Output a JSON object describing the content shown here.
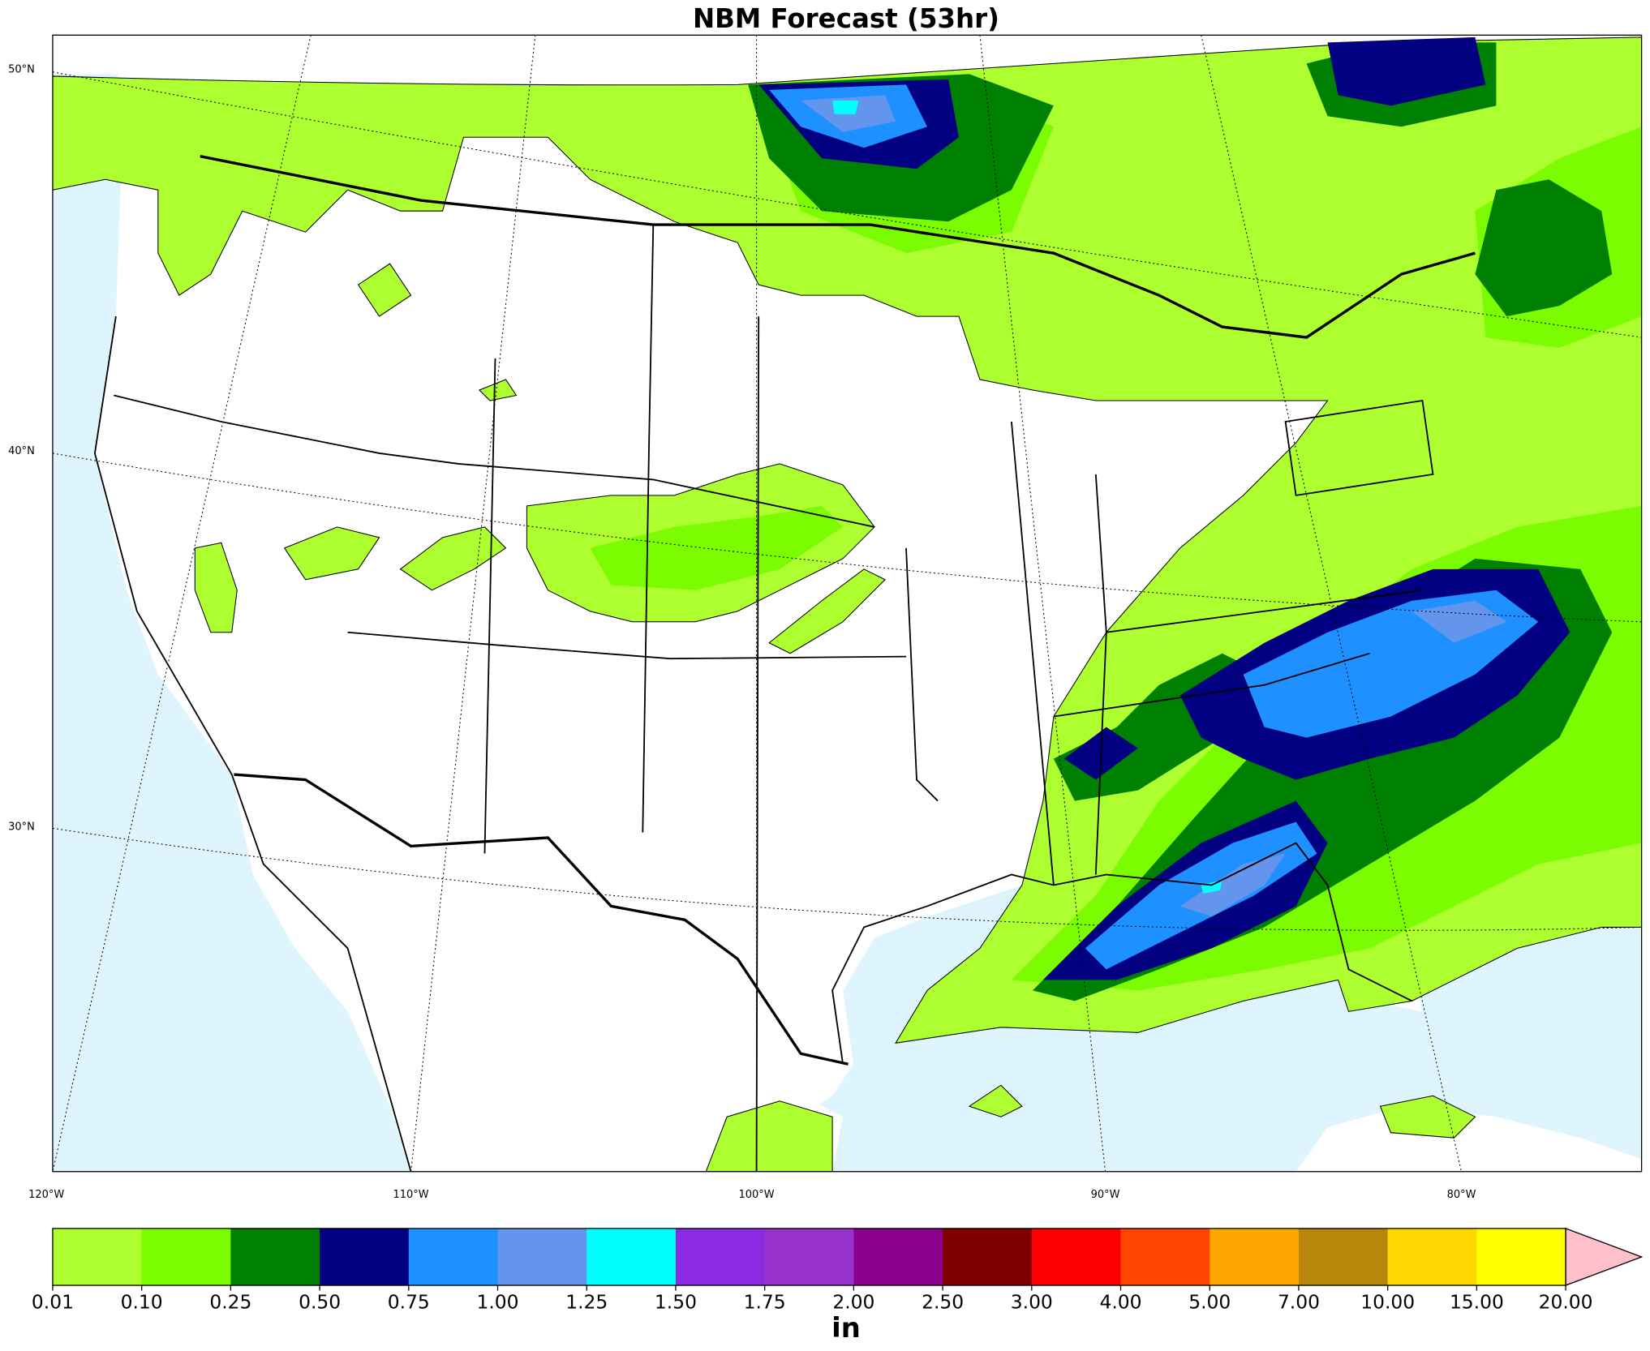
{
  "header": {
    "title": "NBM Forecast (53hr)"
  },
  "map": {
    "lat_labels": [
      "50°N",
      "40°N",
      "30°N"
    ],
    "lon_labels": [
      "120°W",
      "110°W",
      "100°W",
      "90°W",
      "80°W"
    ]
  },
  "colorbar": {
    "ticks": [
      "0.01",
      "0.10",
      "0.25",
      "0.50",
      "0.75",
      "1.00",
      "1.25",
      "1.50",
      "1.75",
      "2.00",
      "2.50",
      "3.00",
      "4.00",
      "5.00",
      "7.00",
      "10.00",
      "15.00",
      "20.00"
    ],
    "colors": [
      "#adff2f",
      "#7cfc00",
      "#008000",
      "#000080",
      "#1e90ff",
      "#6495ed",
      "#00ffff",
      "#8a2be2",
      "#9932cc",
      "#8b008b",
      "#800000",
      "#ff0000",
      "#ff4500",
      "#ffa500",
      "#b8860b",
      "#ffd700",
      "#ffff00"
    ],
    "extend_color": "#ffc0cb",
    "label": "in"
  }
}
